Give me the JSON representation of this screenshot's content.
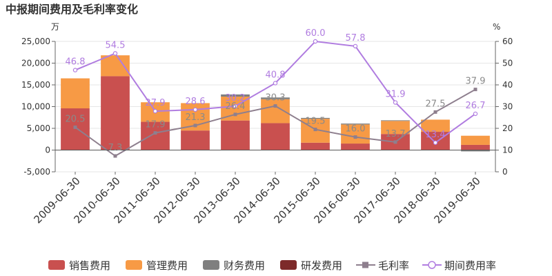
{
  "chart_data": {
    "type": "bar",
    "title": "中报期间费用及毛利率变化",
    "y_unit_left": "万",
    "y_unit_right": "%",
    "categories": [
      "2009-06-30",
      "2010-06-30",
      "2011-06-30",
      "2012-06-30",
      "2013-06-30",
      "2014-06-30",
      "2015-06-30",
      "2016-06-30",
      "2017-06-30",
      "2018-06-30",
      "2019-06-30"
    ],
    "ylim_left": [
      -5000,
      25000
    ],
    "yticks_left": [
      "-5,000",
      "0",
      "5,000",
      "10,000",
      "15,000",
      "20,000",
      "25,000"
    ],
    "ylim_right": [
      0,
      60
    ],
    "yticks_right": [
      "0",
      "10",
      "20",
      "30",
      "40",
      "50",
      "60"
    ],
    "series": [
      {
        "name": "销售费用",
        "kind": "bar",
        "color": "#c9504f",
        "values": [
          9600,
          17000,
          6500,
          4500,
          6800,
          6200,
          1700,
          1500,
          3700,
          4200,
          1200
        ]
      },
      {
        "name": "管理费用",
        "kind": "bar",
        "color": "#f79a45",
        "values": [
          6900,
          4800,
          4500,
          6300,
          5500,
          5500,
          5500,
          4400,
          3000,
          2800,
          2100
        ]
      },
      {
        "name": "财务费用",
        "kind": "bar",
        "color": "#7f7f7f",
        "values": [
          0,
          0,
          0,
          0,
          500,
          400,
          200,
          200,
          150,
          0,
          -300
        ]
      },
      {
        "name": "研发费用",
        "kind": "bar",
        "color": "#7d2a2a",
        "values": [
          0,
          0,
          0,
          0,
          0,
          0,
          0,
          0,
          0,
          0,
          0
        ]
      },
      {
        "name": "毛利率",
        "kind": "line",
        "color": "#8e7f8e",
        "values": [
          20.5,
          7.3,
          17.9,
          21.3,
          26.4,
          30.3,
          19.5,
          16.0,
          13.7,
          27.5,
          37.9
        ],
        "labels": [
          "20.5",
          "7.3",
          "17.9",
          "21.3",
          "26.4",
          "30.3",
          "19.5",
          "16.0",
          "13.7",
          "27.5",
          "37.9"
        ]
      },
      {
        "name": "期间费用率",
        "kind": "line",
        "color": "#b07ce0",
        "values": [
          46.8,
          54.5,
          27.9,
          28.6,
          30.2,
          40.8,
          60.0,
          57.8,
          31.9,
          13.4,
          26.7
        ],
        "labels": [
          "46.8",
          "54.5",
          "27.9",
          "28.6",
          "30.2",
          "40.8",
          "60.0",
          "57.8",
          "31.9",
          "13.4",
          "26.7"
        ]
      }
    ],
    "legend_position": "bottom"
  }
}
